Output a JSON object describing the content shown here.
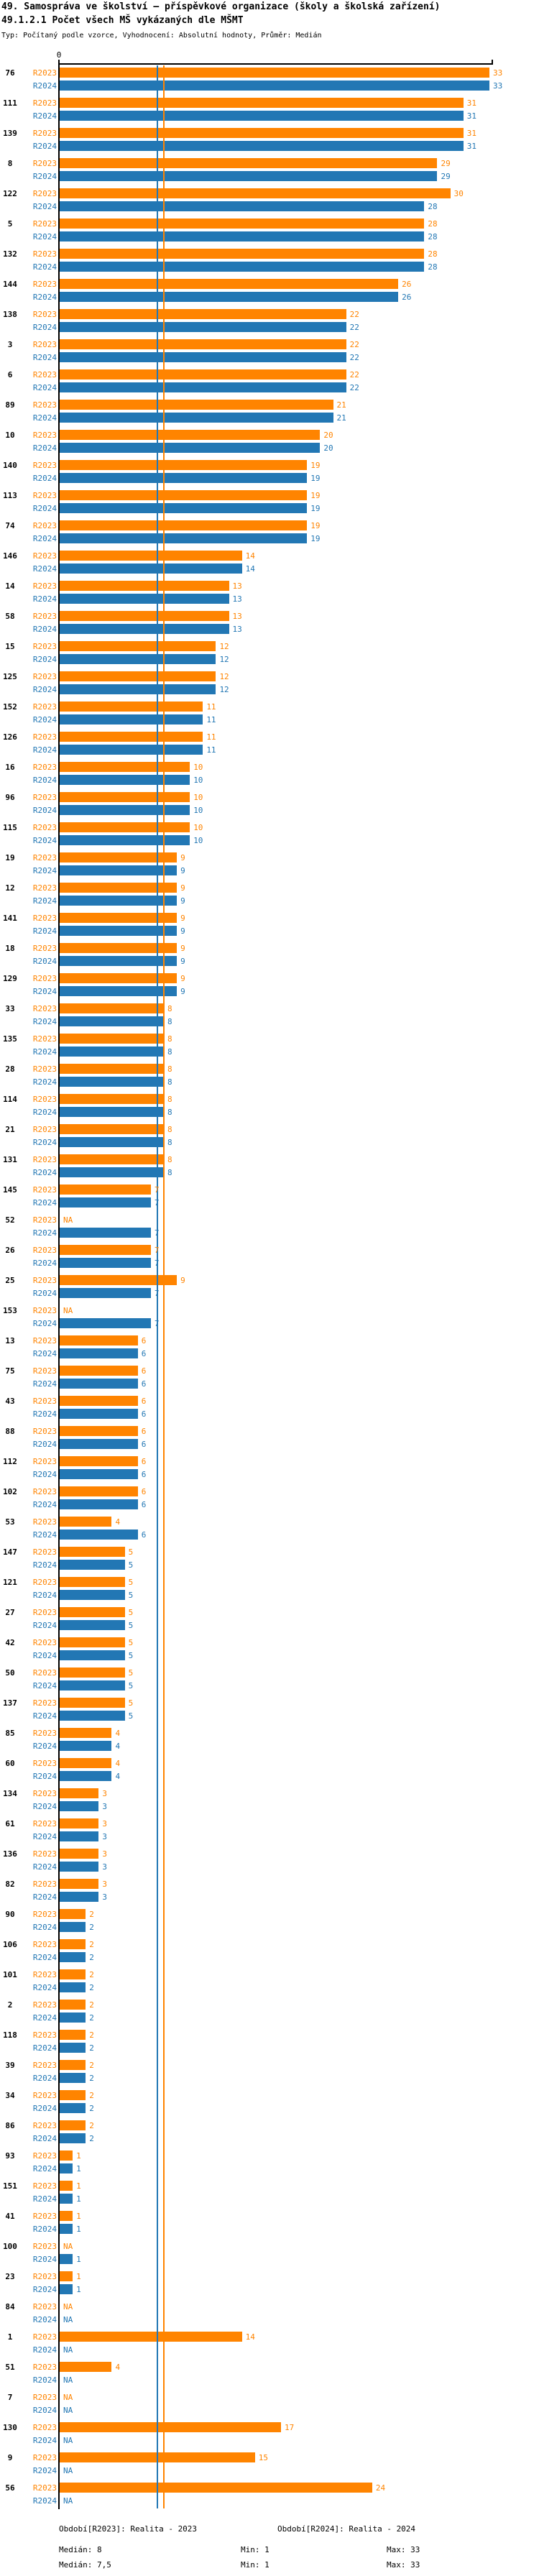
{
  "header": {
    "title1": "49. Samospráva ve školství – příspěvkové organizace (školy a školská zařízení)",
    "title2": "49.1.2.1 Počet všech MŠ vykázaných dle MŠMT",
    "meta": "Typ: Počítaný podle vzorce, Vyhodnocení: Absolutní hodnoty, Průměr: Medián"
  },
  "axis": {
    "zero_label": "0"
  },
  "na_label": "NA",
  "colors": {
    "r2023": "#FF8400",
    "r2024": "#2277B4",
    "axis": "#000000"
  },
  "chart_data": {
    "type": "bar",
    "orientation": "horizontal",
    "title": "49.1.2.1 Počet všech MŠ vykázaných dle MŠMT",
    "xlabel": "",
    "ylabel": "",
    "xlim": [
      0,
      33.4
    ],
    "grid": false,
    "series_names": [
      "R2023",
      "R2024"
    ],
    "legend": {
      "r2023": "Období[R2023]: Realita - 2023",
      "r2024": "Období[R2024]: Realita - 2024"
    },
    "stats": {
      "r2023": {
        "median": 8,
        "min": 1,
        "max": 33
      },
      "r2024": {
        "median": 7.5,
        "min": 1,
        "max": 33
      }
    },
    "median_markers": {
      "r2023": 8,
      "r2024": 7.5
    },
    "rows": [
      {
        "id": "76",
        "r2023": 33,
        "r2024": 33
      },
      {
        "id": "111",
        "r2023": 31,
        "r2024": 31
      },
      {
        "id": "139",
        "r2023": 31,
        "r2024": 31
      },
      {
        "id": "8",
        "r2023": 29,
        "r2024": 29
      },
      {
        "id": "122",
        "r2023": 30,
        "r2024": 28
      },
      {
        "id": "5",
        "r2023": 28,
        "r2024": 28
      },
      {
        "id": "132",
        "r2023": 28,
        "r2024": 28
      },
      {
        "id": "144",
        "r2023": 26,
        "r2024": 26
      },
      {
        "id": "138",
        "r2023": 22,
        "r2024": 22
      },
      {
        "id": "3",
        "r2023": 22,
        "r2024": 22
      },
      {
        "id": "6",
        "r2023": 22,
        "r2024": 22
      },
      {
        "id": "89",
        "r2023": 21,
        "r2024": 21
      },
      {
        "id": "10",
        "r2023": 20,
        "r2024": 20
      },
      {
        "id": "140",
        "r2023": 19,
        "r2024": 19
      },
      {
        "id": "113",
        "r2023": 19,
        "r2024": 19
      },
      {
        "id": "74",
        "r2023": 19,
        "r2024": 19
      },
      {
        "id": "146",
        "r2023": 14,
        "r2024": 14
      },
      {
        "id": "14",
        "r2023": 13,
        "r2024": 13
      },
      {
        "id": "58",
        "r2023": 13,
        "r2024": 13
      },
      {
        "id": "15",
        "r2023": 12,
        "r2024": 12
      },
      {
        "id": "125",
        "r2023": 12,
        "r2024": 12
      },
      {
        "id": "152",
        "r2023": 11,
        "r2024": 11
      },
      {
        "id": "126",
        "r2023": 11,
        "r2024": 11
      },
      {
        "id": "16",
        "r2023": 10,
        "r2024": 10
      },
      {
        "id": "96",
        "r2023": 10,
        "r2024": 10
      },
      {
        "id": "115",
        "r2023": 10,
        "r2024": 10
      },
      {
        "id": "19",
        "r2023": 9,
        "r2024": 9
      },
      {
        "id": "12",
        "r2023": 9,
        "r2024": 9
      },
      {
        "id": "141",
        "r2023": 9,
        "r2024": 9
      },
      {
        "id": "18",
        "r2023": 9,
        "r2024": 9
      },
      {
        "id": "129",
        "r2023": 9,
        "r2024": 9
      },
      {
        "id": "33",
        "r2023": 8,
        "r2024": 8
      },
      {
        "id": "135",
        "r2023": 8,
        "r2024": 8
      },
      {
        "id": "28",
        "r2023": 8,
        "r2024": 8
      },
      {
        "id": "114",
        "r2023": 8,
        "r2024": 8
      },
      {
        "id": "21",
        "r2023": 8,
        "r2024": 8
      },
      {
        "id": "131",
        "r2023": 8,
        "r2024": 8
      },
      {
        "id": "145",
        "r2023": 7,
        "r2024": 7
      },
      {
        "id": "52",
        "r2023": null,
        "r2024": 7
      },
      {
        "id": "26",
        "r2023": 7,
        "r2024": 7
      },
      {
        "id": "25",
        "r2023": 9,
        "r2024": 7
      },
      {
        "id": "153",
        "r2023": null,
        "r2024": 7
      },
      {
        "id": "13",
        "r2023": 6,
        "r2024": 6
      },
      {
        "id": "75",
        "r2023": 6,
        "r2024": 6
      },
      {
        "id": "43",
        "r2023": 6,
        "r2024": 6
      },
      {
        "id": "88",
        "r2023": 6,
        "r2024": 6
      },
      {
        "id": "112",
        "r2023": 6,
        "r2024": 6
      },
      {
        "id": "102",
        "r2023": 6,
        "r2024": 6
      },
      {
        "id": "53",
        "r2023": 4,
        "r2024": 6
      },
      {
        "id": "147",
        "r2023": 5,
        "r2024": 5
      },
      {
        "id": "121",
        "r2023": 5,
        "r2024": 5
      },
      {
        "id": "27",
        "r2023": 5,
        "r2024": 5
      },
      {
        "id": "42",
        "r2023": 5,
        "r2024": 5
      },
      {
        "id": "50",
        "r2023": 5,
        "r2024": 5
      },
      {
        "id": "137",
        "r2023": 5,
        "r2024": 5
      },
      {
        "id": "85",
        "r2023": 4,
        "r2024": 4
      },
      {
        "id": "60",
        "r2023": 4,
        "r2024": 4
      },
      {
        "id": "134",
        "r2023": 3,
        "r2024": 3
      },
      {
        "id": "61",
        "r2023": 3,
        "r2024": 3
      },
      {
        "id": "136",
        "r2023": 3,
        "r2024": 3
      },
      {
        "id": "82",
        "r2023": 3,
        "r2024": 3
      },
      {
        "id": "90",
        "r2023": 2,
        "r2024": 2
      },
      {
        "id": "106",
        "r2023": 2,
        "r2024": 2
      },
      {
        "id": "101",
        "r2023": 2,
        "r2024": 2
      },
      {
        "id": "2",
        "r2023": 2,
        "r2024": 2
      },
      {
        "id": "118",
        "r2023": 2,
        "r2024": 2
      },
      {
        "id": "39",
        "r2023": 2,
        "r2024": 2
      },
      {
        "id": "34",
        "r2023": 2,
        "r2024": 2
      },
      {
        "id": "86",
        "r2023": 2,
        "r2024": 2
      },
      {
        "id": "93",
        "r2023": 1,
        "r2024": 1
      },
      {
        "id": "151",
        "r2023": 1,
        "r2024": 1
      },
      {
        "id": "41",
        "r2023": 1,
        "r2024": 1
      },
      {
        "id": "100",
        "r2023": null,
        "r2024": 1
      },
      {
        "id": "23",
        "r2023": 1,
        "r2024": 1
      },
      {
        "id": "84",
        "r2023": null,
        "r2024": null
      },
      {
        "id": "1",
        "r2023": 14,
        "r2024": null
      },
      {
        "id": "51",
        "r2023": 4,
        "r2024": null
      },
      {
        "id": "7",
        "r2023": null,
        "r2024": null
      },
      {
        "id": "130",
        "r2023": 17,
        "r2024": null
      },
      {
        "id": "9",
        "r2023": 15,
        "r2024": null
      },
      {
        "id": "56",
        "r2023": 24,
        "r2024": null
      }
    ]
  },
  "footer": {
    "legend_2023": "Období[R2023]: Realita - 2023",
    "legend_2024": "Období[R2024]: Realita - 2024",
    "median_2023": "Medián: 8",
    "min_2023": "Min: 1",
    "max_2023": "Max: 33",
    "median_2024": "Medián: 7,5",
    "min_2024": "Min: 1",
    "max_2024": "Max: 33"
  }
}
